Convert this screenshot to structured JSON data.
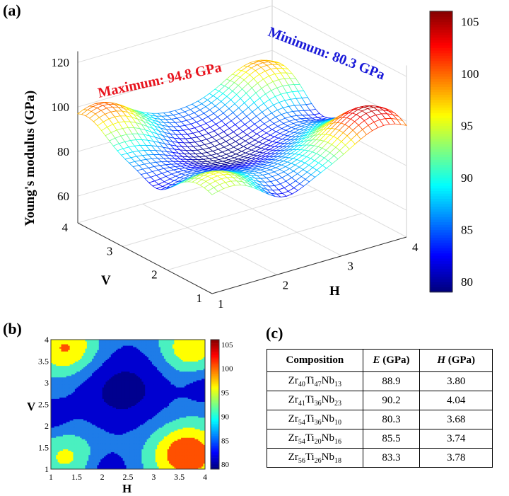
{
  "panels": {
    "a": "(a)",
    "b": "(b)",
    "c": "(c)"
  },
  "annotations": {
    "maximum": "Maximum: 94.8 GPa",
    "minimum": "Minimum: 80.3 GPa",
    "max_color": "#e8141e",
    "min_color": "#1a1ad8"
  },
  "chart_data": [
    {
      "type": "surface",
      "zlabel": "Young's modulus (GPa)",
      "xlabel": "H",
      "ylabel": "V",
      "xticks": [
        1,
        2,
        3,
        4
      ],
      "yticks": [
        1,
        2,
        3,
        4
      ],
      "zticks": [
        60,
        80,
        100,
        120
      ],
      "colorbar": {
        "ticks": [
          80,
          85,
          90,
          95,
          100,
          105
        ],
        "range": [
          79,
          106
        ],
        "colormap": "jet"
      },
      "maximum_GPa": 94.8,
      "minimum_GPa": 80.3
    },
    {
      "type": "contour",
      "xlabel": "H",
      "ylabel": "V",
      "xticks": [
        "1",
        "1.5",
        "2",
        "2.5",
        "3",
        "3.5",
        "4"
      ],
      "yticks": [
        "1",
        "1.5",
        "2",
        "2.5",
        "3",
        "3.5",
        "4"
      ],
      "levels": [
        80,
        85,
        90,
        95,
        100,
        105
      ],
      "colorbar": {
        "ticks": [
          "80",
          "85",
          "90",
          "95",
          "100",
          "105"
        ],
        "colormap": "jet"
      }
    }
  ],
  "table": {
    "headers": [
      {
        "main": "Composition",
        "sym": "",
        "unit": ""
      },
      {
        "sym": "E",
        "unit": " (GPa)"
      },
      {
        "sym": "H",
        "unit": " (GPa)"
      }
    ],
    "rows": [
      {
        "zr": "40",
        "ti": "47",
        "nb": "13",
        "E": "88.9",
        "H": "3.80"
      },
      {
        "zr": "41",
        "ti": "36",
        "nb": "23",
        "E": "90.2",
        "H": "4.04"
      },
      {
        "zr": "54",
        "ti": "36",
        "nb": "10",
        "E": "80.3",
        "H": "3.68"
      },
      {
        "zr": "54",
        "ti": "20",
        "nb": "16",
        "E": "85.5",
        "H": "3.74"
      },
      {
        "zr": "56",
        "ti": "26",
        "nb": "18",
        "E": "83.3",
        "H": "3.78"
      }
    ],
    "el": {
      "zr": "Zr",
      "ti": "Ti",
      "nb": "Nb"
    }
  }
}
